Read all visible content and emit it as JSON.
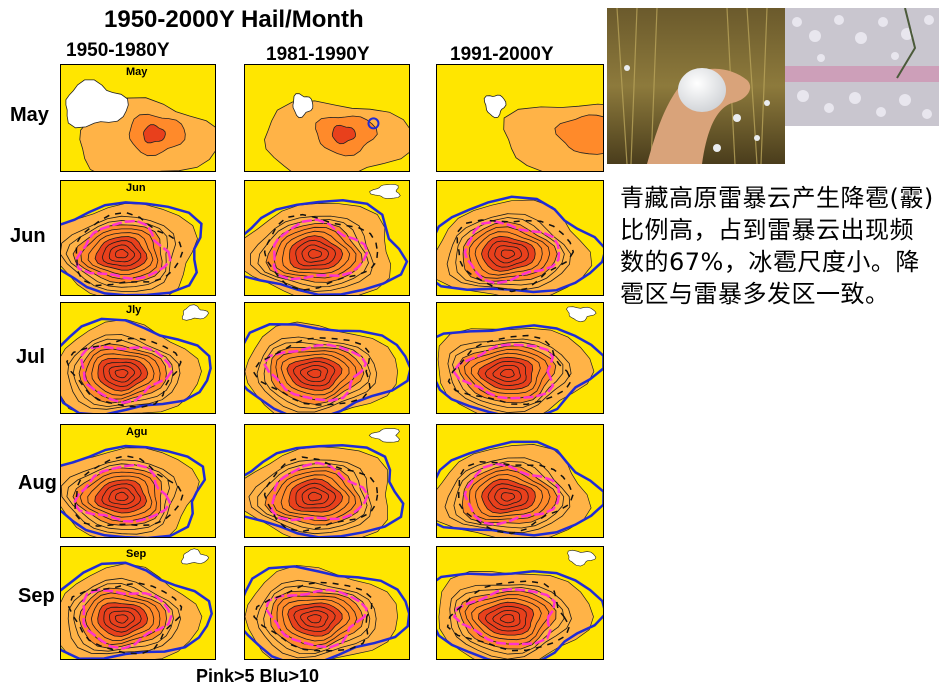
{
  "title": "1950-2000Y Hail/Month",
  "columns": [
    "1950-1980Y",
    "1981-1990Y",
    "1991-2000Y"
  ],
  "rows": [
    "May",
    "Jun",
    "Jul",
    "Aug",
    "Sep"
  ],
  "panel_labels": [
    "May",
    "Jun",
    "Jly",
    "Agu",
    "Sep"
  ],
  "description": "青藏高原雷暴云产生降雹(霰)比例高，占到雷暴云出现频数的67%，冰雹尺度小。降雹区与雷暴多发区一致。",
  "legend": "Pink>5  Blu>10",
  "colors": {
    "yellow": "#ffe600",
    "orange_light": "#ffb347",
    "orange": "#ff8a2a",
    "red": "#e8401c",
    "pink": "#ff33cc",
    "blue": "#1f2bd6"
  }
}
